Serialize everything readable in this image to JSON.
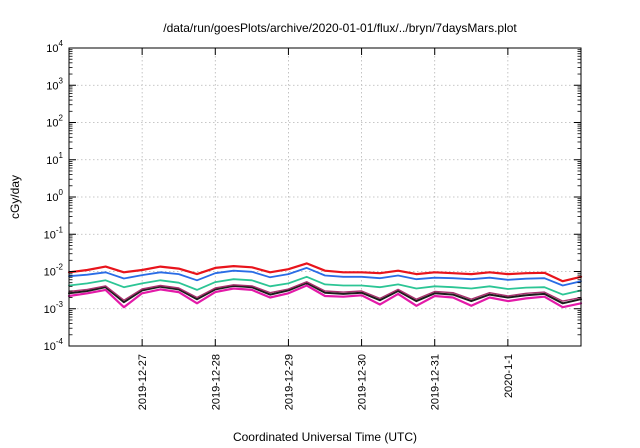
{
  "chart_data": {
    "type": "line",
    "title": "/data/run/goesPlots/archive/2020-01-01/flux/../bryn/7daysMars.plot",
    "xlabel": "Coordinated Universal Time (UTC)",
    "ylabel": "cGy/day",
    "y_scale": "log",
    "ylim": [
      "1e-4",
      "1e4"
    ],
    "y_ticks": [
      {
        "base": "10",
        "exp": "-4"
      },
      {
        "base": "10",
        "exp": "-3"
      },
      {
        "base": "10",
        "exp": "-2"
      },
      {
        "base": "10",
        "exp": "-1"
      },
      {
        "base": "10",
        "exp": "0"
      },
      {
        "base": "10",
        "exp": "1"
      },
      {
        "base": "10",
        "exp": "2"
      },
      {
        "base": "10",
        "exp": "3"
      },
      {
        "base": "10",
        "exp": "4"
      }
    ],
    "x_ticks": [
      "2019-12-27",
      "2019-12-28",
      "2019-12-29",
      "2019-12-30",
      "2019-12-31",
      "2020-1-1"
    ],
    "xlim": [
      "2019-12-26T00:00",
      "2020-01-02T00:00"
    ],
    "grid": true,
    "x": [
      "2019-12-26T00:00",
      "2019-12-26T06:00",
      "2019-12-26T12:00",
      "2019-12-26T18:00",
      "2019-12-27T00:00",
      "2019-12-27T06:00",
      "2019-12-27T12:00",
      "2019-12-27T18:00",
      "2019-12-28T00:00",
      "2019-12-28T06:00",
      "2019-12-28T12:00",
      "2019-12-28T18:00",
      "2019-12-29T00:00",
      "2019-12-29T06:00",
      "2019-12-29T12:00",
      "2019-12-29T18:00",
      "2019-12-30T00:00",
      "2019-12-30T06:00",
      "2019-12-30T12:00",
      "2019-12-30T18:00",
      "2019-12-31T00:00",
      "2019-12-31T06:00",
      "2019-12-31T12:00",
      "2019-12-31T18:00",
      "2020-01-01T00:00",
      "2020-01-01T06:00",
      "2020-01-01T12:00",
      "2020-01-01T18:00",
      "2020-01-02T00:00"
    ],
    "series": [
      {
        "color": "#e8141c",
        "width": 2.2,
        "values": [
          0.0095,
          0.011,
          0.0135,
          0.0095,
          0.011,
          0.0135,
          0.012,
          0.0085,
          0.0125,
          0.014,
          0.013,
          0.0095,
          0.0115,
          0.0165,
          0.0105,
          0.0095,
          0.0095,
          0.009,
          0.0105,
          0.0085,
          0.0095,
          0.009,
          0.0085,
          0.0095,
          0.0085,
          0.009,
          0.0092,
          0.0055,
          0.0072
        ]
      },
      {
        "color": "#2a6ce6",
        "width": 1.8,
        "values": [
          0.0075,
          0.0082,
          0.0095,
          0.0065,
          0.008,
          0.0095,
          0.0085,
          0.0058,
          0.009,
          0.0105,
          0.0098,
          0.007,
          0.0085,
          0.0125,
          0.0078,
          0.0072,
          0.0072,
          0.0066,
          0.0078,
          0.0062,
          0.0068,
          0.0066,
          0.0062,
          0.0068,
          0.006,
          0.0064,
          0.0066,
          0.0042,
          0.0055
        ]
      },
      {
        "color": "#2cc595",
        "width": 1.8,
        "values": [
          0.0042,
          0.0048,
          0.0058,
          0.0038,
          0.0048,
          0.0058,
          0.005,
          0.0032,
          0.0052,
          0.0062,
          0.0058,
          0.004,
          0.0048,
          0.0072,
          0.0045,
          0.0042,
          0.0042,
          0.0038,
          0.0045,
          0.0035,
          0.004,
          0.0038,
          0.0035,
          0.004,
          0.0034,
          0.0037,
          0.0038,
          0.0024,
          0.0031
        ]
      },
      {
        "color": "#e31aa8",
        "width": 2.2,
        "values": [
          0.0022,
          0.0026,
          0.0032,
          0.0011,
          0.0026,
          0.0033,
          0.0028,
          0.0014,
          0.0028,
          0.0035,
          0.0032,
          0.002,
          0.0026,
          0.0042,
          0.0022,
          0.0021,
          0.0023,
          0.0013,
          0.0025,
          0.0012,
          0.0022,
          0.002,
          0.0012,
          0.002,
          0.0016,
          0.0019,
          0.0021,
          0.0011,
          0.0014
        ]
      },
      {
        "color": "#1c1c1c",
        "width": 2.0,
        "values": [
          0.0026,
          0.003,
          0.0038,
          0.0015,
          0.0031,
          0.0039,
          0.0033,
          0.0018,
          0.0033,
          0.0041,
          0.0038,
          0.0024,
          0.0031,
          0.0049,
          0.0027,
          0.0025,
          0.0027,
          0.0017,
          0.003,
          0.0016,
          0.0026,
          0.0024,
          0.0016,
          0.0024,
          0.002,
          0.0023,
          0.0025,
          0.0014,
          0.0018
        ]
      },
      {
        "color": "#a8326e",
        "width": 1.4,
        "values": [
          0.0029,
          0.0033,
          0.0041,
          0.0017,
          0.0034,
          0.0042,
          0.0036,
          0.002,
          0.0036,
          0.0044,
          0.0041,
          0.0027,
          0.0034,
          0.0053,
          0.003,
          0.0028,
          0.003,
          0.0019,
          0.0033,
          0.0018,
          0.0029,
          0.0027,
          0.0018,
          0.0027,
          0.0022,
          0.0026,
          0.0028,
          0.0016,
          0.002
        ]
      }
    ]
  }
}
